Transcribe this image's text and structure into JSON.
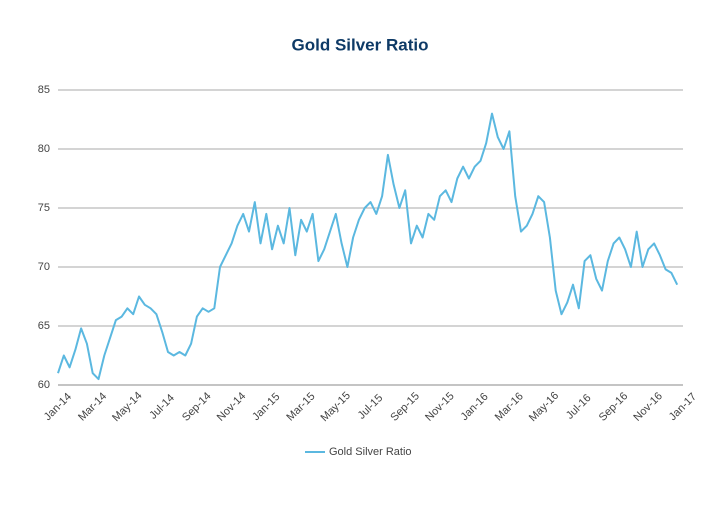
{
  "chart_data": {
    "type": "line",
    "title": "Gold Silver Ratio",
    "categories": [
      "Jan-14",
      null,
      null,
      null,
      null,
      null,
      "Mar-14",
      null,
      null,
      null,
      null,
      null,
      "May-14",
      null,
      null,
      null,
      null,
      null,
      "Jul-14",
      null,
      null,
      null,
      null,
      null,
      "Sep-14",
      null,
      null,
      null,
      null,
      null,
      "Nov-14",
      null,
      null,
      null,
      null,
      null,
      "Jan-15",
      null,
      null,
      null,
      null,
      null,
      "Mar-15",
      null,
      null,
      null,
      null,
      null,
      "May-15",
      null,
      null,
      null,
      null,
      null,
      "Jul-15",
      null,
      null,
      null,
      null,
      null,
      "Sep-15",
      null,
      null,
      null,
      null,
      null,
      "Nov-15",
      null,
      null,
      null,
      null,
      null,
      "Jan-16",
      null,
      null,
      null,
      null,
      null,
      "Mar-16",
      null,
      null,
      null,
      null,
      null,
      "May-16",
      null,
      null,
      null,
      null,
      null,
      "Jul-16",
      null,
      null,
      null,
      null,
      null,
      "Sep-16",
      null,
      null,
      null,
      null,
      null,
      "Nov-16",
      null,
      null,
      null,
      null,
      null,
      "Jan-17"
    ],
    "series": [
      {
        "name": "Gold Silver Ratio",
        "color": "#5bb8e0",
        "values": [
          61,
          62.5,
          61.5,
          63,
          64.8,
          63.5,
          61,
          60.5,
          62.5,
          64,
          65.5,
          65.8,
          66.5,
          66,
          67.5,
          66.8,
          66.5,
          66,
          64.5,
          62.8,
          62.5,
          62.8,
          62.5,
          63.5,
          65.8,
          66.5,
          66.2,
          66.5,
          70,
          71,
          72,
          73.5,
          74.5,
          73,
          75.5,
          72,
          74.5,
          71.5,
          73.5,
          72,
          75,
          71,
          74,
          73,
          74.5,
          70.5,
          71.5,
          73,
          74.5,
          72,
          70,
          72.5,
          74,
          75,
          75.5,
          74.5,
          76,
          79.5,
          77,
          75,
          76.5,
          72,
          73.5,
          72.5,
          74.5,
          74,
          76,
          76.5,
          75.5,
          77.5,
          78.5,
          77.5,
          78.5,
          79,
          80.5,
          83,
          81,
          80,
          81.5,
          76,
          73,
          73.5,
          74.5,
          76,
          75.5,
          72.5,
          68,
          66,
          67,
          68.5,
          66.5,
          70.5,
          71,
          69,
          68,
          70.5,
          72,
          72.5,
          71.5,
          70,
          73,
          70,
          71.5,
          72,
          71,
          69.8,
          69.5,
          68.5,
          null
        ]
      }
    ],
    "ylim": [
      60,
      85
    ],
    "yticks": [
      60,
      65,
      70,
      75,
      80,
      85
    ],
    "grid": true,
    "legend": "bottom"
  }
}
